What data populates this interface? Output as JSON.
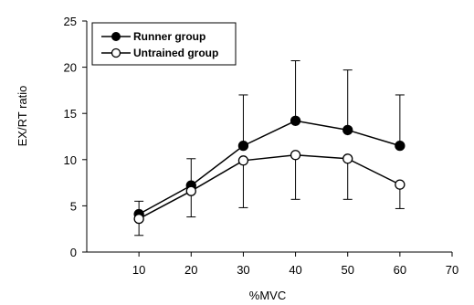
{
  "chart_data": {
    "type": "line",
    "xlabel": "%MVC",
    "ylabel": "EX/RT ratio",
    "xlim": [
      0,
      70
    ],
    "ylim": [
      0,
      25
    ],
    "x_ticks": [
      10,
      20,
      30,
      40,
      50,
      60,
      70
    ],
    "y_ticks": [
      0,
      5,
      10,
      15,
      20,
      25
    ],
    "grid": false,
    "legend_position": "top-left",
    "series": [
      {
        "name": "Runner group",
        "marker": "filled-circle",
        "color": "#000000",
        "x": [
          10,
          20,
          30,
          40,
          50,
          60
        ],
        "y": [
          4.1,
          7.2,
          11.5,
          14.2,
          13.2,
          11.5
        ],
        "error_upper": [
          5.5,
          10.1,
          17.0,
          20.7,
          19.7,
          17.0
        ],
        "error_lower": [
          null,
          null,
          null,
          null,
          null,
          null
        ]
      },
      {
        "name": "Untrained group",
        "marker": "open-circle",
        "color": "#000000",
        "x": [
          10,
          20,
          30,
          40,
          50,
          60
        ],
        "y": [
          3.6,
          6.6,
          9.9,
          10.5,
          10.1,
          7.3
        ],
        "error_upper": [
          null,
          null,
          null,
          null,
          null,
          null
        ],
        "error_lower": [
          1.8,
          3.8,
          4.8,
          5.7,
          5.7,
          4.7
        ]
      }
    ]
  }
}
